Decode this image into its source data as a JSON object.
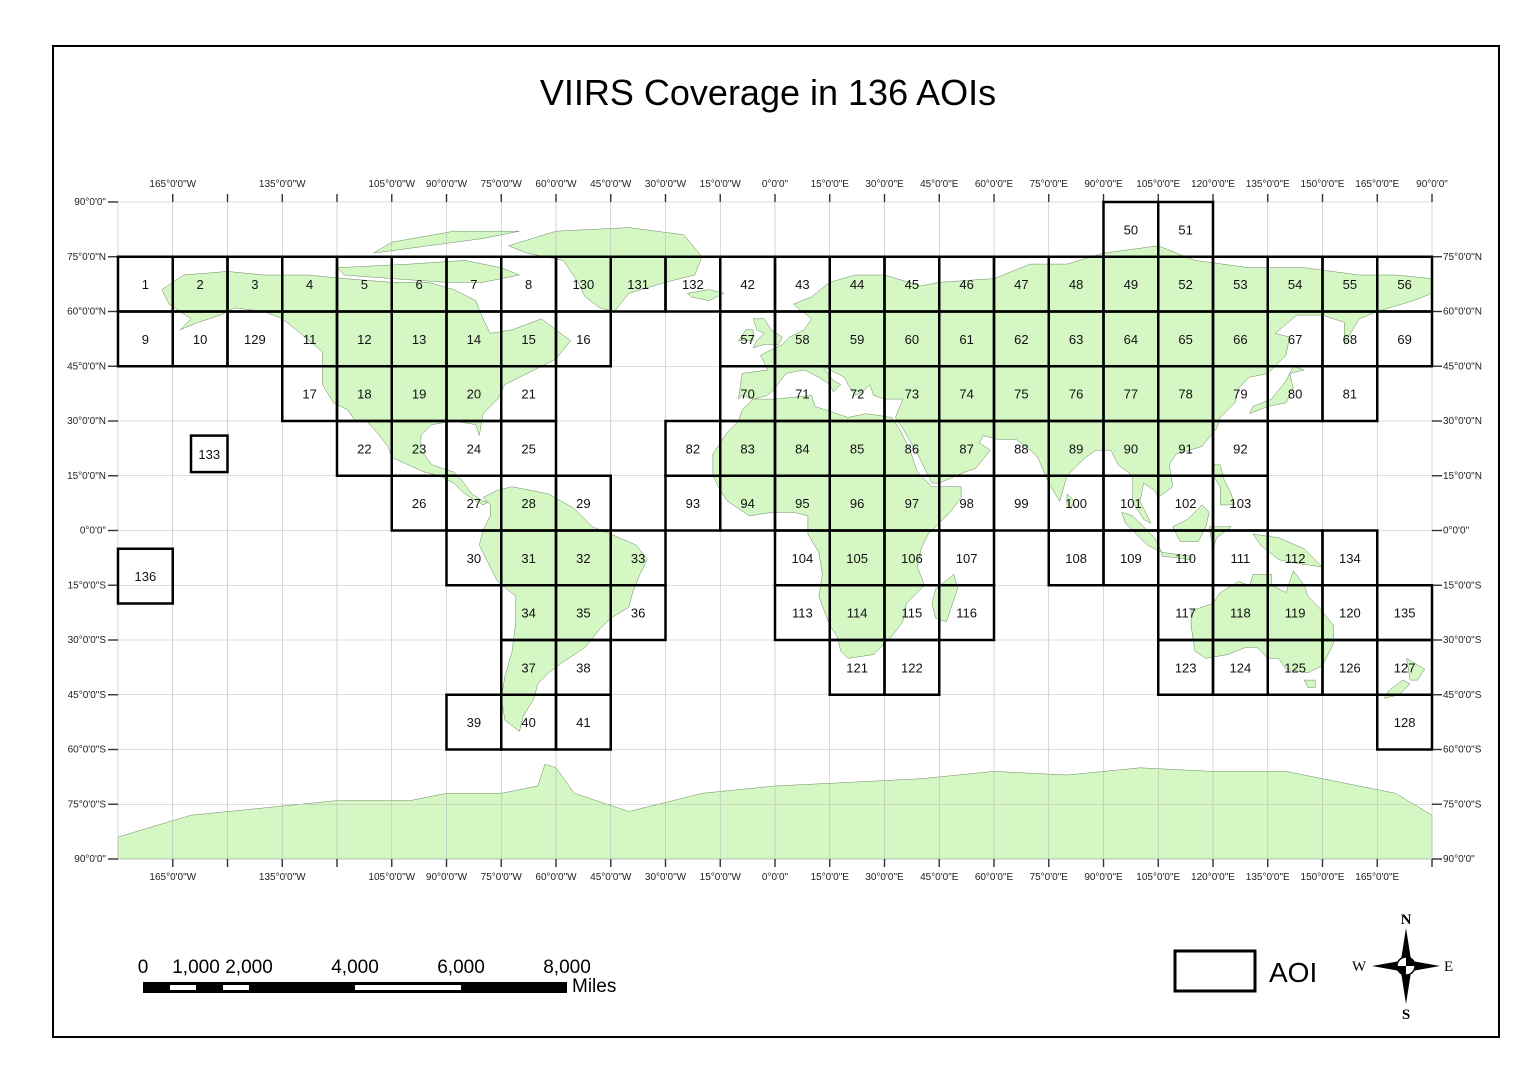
{
  "title": "VIIRS Coverage in 136 AOIs",
  "colors": {
    "land": "#d4f7c4",
    "grid": "#bbbbbb",
    "aoi_border": "#000000"
  },
  "map": {
    "lon_labels_top": [
      "165°0'0\"W",
      "135°0'0\"W",
      "105°0'0\"W",
      "90°0'0\"W",
      "75°0'0\"W",
      "60°0'0\"W",
      "45°0'0\"W",
      "30°0'0\"W",
      "15°0'0\"W",
      "0°0'0\"",
      "15°0'0\"E",
      "30°0'0\"E",
      "45°0'0\"E",
      "60°0'0\"E",
      "75°0'0\"E",
      "90°0'0\"E",
      "105°0'0\"E",
      "120°0'0\"E",
      "135°0'0\"E",
      "150°0'0\"E",
      "165°0'0\"E",
      "90°0'0\""
    ],
    "lon_labels_bottom": [
      "165°0'0\"W",
      "135°0'0\"W",
      "105°0'0\"W",
      "90°0'0\"W",
      "75°0'0\"W",
      "60°0'0\"W",
      "45°0'0\"W",
      "30°0'0\"W",
      "15°0'0\"W",
      "0°0'0\"",
      "15°0'0\"E",
      "30°0'0\"E",
      "45°0'0\"E",
      "60°0'0\"E",
      "75°0'0\"E",
      "90°0'0\"E",
      "105°0'0\"E",
      "120°0'0\"E",
      "135°0'0\"E",
      "150°0'0\"E",
      "165°0'0\"E"
    ],
    "lat_labels_left": [
      "90°0'0\"",
      "75°0'0\"N",
      "60°0'0\"N",
      "45°0'0\"N",
      "30°0'0\"N",
      "15°0'0\"N",
      "0°0'0\"",
      "15°0'0\"S",
      "30°0'0\"S",
      "45°0'0\"S",
      "60°0'0\"S",
      "75°0'0\"S",
      "90°0'0\""
    ],
    "lat_labels_right": [
      "75°0'0\"N",
      "60°0'0\"N",
      "45°0'0\"N",
      "30°0'0\"N",
      "15°0'0\"N",
      "0°0'0\"",
      "15°0'0\"S",
      "30°0'0\"S",
      "45°0'0\"S",
      "60°0'0\"S",
      "75°0'0\"S",
      "90°0'0\""
    ]
  },
  "aois": [
    {
      "id": "1",
      "lon": -180,
      "lat": 75
    },
    {
      "id": "2",
      "lon": -165,
      "lat": 75
    },
    {
      "id": "3",
      "lon": -150,
      "lat": 75
    },
    {
      "id": "4",
      "lon": -135,
      "lat": 75
    },
    {
      "id": "5",
      "lon": -120,
      "lat": 75
    },
    {
      "id": "6",
      "lon": -105,
      "lat": 75
    },
    {
      "id": "7",
      "lon": -90,
      "lat": 75
    },
    {
      "id": "8",
      "lon": -75,
      "lat": 75
    },
    {
      "id": "130",
      "lon": -60,
      "lat": 75
    },
    {
      "id": "131",
      "lon": -45,
      "lat": 75
    },
    {
      "id": "132",
      "lon": -30,
      "lat": 75
    },
    {
      "id": "42",
      "lon": -15,
      "lat": 75
    },
    {
      "id": "43",
      "lon": 0,
      "lat": 75
    },
    {
      "id": "44",
      "lon": 15,
      "lat": 75
    },
    {
      "id": "45",
      "lon": 30,
      "lat": 75
    },
    {
      "id": "46",
      "lon": 45,
      "lat": 75
    },
    {
      "id": "47",
      "lon": 60,
      "lat": 75
    },
    {
      "id": "48",
      "lon": 75,
      "lat": 75
    },
    {
      "id": "49",
      "lon": 90,
      "lat": 75
    },
    {
      "id": "52",
      "lon": 105,
      "lat": 75
    },
    {
      "id": "53",
      "lon": 120,
      "lat": 75
    },
    {
      "id": "54",
      "lon": 135,
      "lat": 75
    },
    {
      "id": "55",
      "lon": 150,
      "lat": 75
    },
    {
      "id": "56",
      "lon": 165,
      "lat": 75
    },
    {
      "id": "50",
      "lon": 90,
      "lat": 90
    },
    {
      "id": "51",
      "lon": 105,
      "lat": 90
    },
    {
      "id": "9",
      "lon": -180,
      "lat": 60
    },
    {
      "id": "10",
      "lon": -165,
      "lat": 60
    },
    {
      "id": "129",
      "lon": -150,
      "lat": 60
    },
    {
      "id": "11",
      "lon": -135,
      "lat": 60
    },
    {
      "id": "12",
      "lon": -120,
      "lat": 60
    },
    {
      "id": "13",
      "lon": -105,
      "lat": 60
    },
    {
      "id": "14",
      "lon": -90,
      "lat": 60
    },
    {
      "id": "15",
      "lon": -75,
      "lat": 60
    },
    {
      "id": "16",
      "lon": -60,
      "lat": 60
    },
    {
      "id": "57",
      "lon": -15,
      "lat": 60
    },
    {
      "id": "58",
      "lon": 0,
      "lat": 60
    },
    {
      "id": "59",
      "lon": 15,
      "lat": 60
    },
    {
      "id": "60",
      "lon": 30,
      "lat": 60
    },
    {
      "id": "61",
      "lon": 45,
      "lat": 60
    },
    {
      "id": "62",
      "lon": 60,
      "lat": 60
    },
    {
      "id": "63",
      "lon": 75,
      "lat": 60
    },
    {
      "id": "64",
      "lon": 90,
      "lat": 60
    },
    {
      "id": "65",
      "lon": 105,
      "lat": 60
    },
    {
      "id": "66",
      "lon": 120,
      "lat": 60
    },
    {
      "id": "67",
      "lon": 135,
      "lat": 60
    },
    {
      "id": "68",
      "lon": 150,
      "lat": 60
    },
    {
      "id": "69",
      "lon": 165,
      "lat": 60
    },
    {
      "id": "17",
      "lon": -135,
      "lat": 45
    },
    {
      "id": "18",
      "lon": -120,
      "lat": 45
    },
    {
      "id": "19",
      "lon": -105,
      "lat": 45
    },
    {
      "id": "20",
      "lon": -90,
      "lat": 45
    },
    {
      "id": "21",
      "lon": -75,
      "lat": 45
    },
    {
      "id": "70",
      "lon": -15,
      "lat": 45
    },
    {
      "id": "71",
      "lon": 0,
      "lat": 45
    },
    {
      "id": "72",
      "lon": 15,
      "lat": 45
    },
    {
      "id": "73",
      "lon": 30,
      "lat": 45
    },
    {
      "id": "74",
      "lon": 45,
      "lat": 45
    },
    {
      "id": "75",
      "lon": 60,
      "lat": 45
    },
    {
      "id": "76",
      "lon": 75,
      "lat": 45
    },
    {
      "id": "77",
      "lon": 90,
      "lat": 45
    },
    {
      "id": "78",
      "lon": 105,
      "lat": 45
    },
    {
      "id": "79",
      "lon": 120,
      "lat": 45
    },
    {
      "id": "80",
      "lon": 135,
      "lat": 45
    },
    {
      "id": "81",
      "lon": 150,
      "lat": 45
    },
    {
      "id": "22",
      "lon": -120,
      "lat": 30
    },
    {
      "id": "23",
      "lon": -105,
      "lat": 30
    },
    {
      "id": "24",
      "lon": -90,
      "lat": 30
    },
    {
      "id": "25",
      "lon": -75,
      "lat": 30
    },
    {
      "id": "82",
      "lon": -30,
      "lat": 30
    },
    {
      "id": "83",
      "lon": -15,
      "lat": 30
    },
    {
      "id": "84",
      "lon": 0,
      "lat": 30
    },
    {
      "id": "85",
      "lon": 15,
      "lat": 30
    },
    {
      "id": "86",
      "lon": 30,
      "lat": 30
    },
    {
      "id": "87",
      "lon": 45,
      "lat": 30
    },
    {
      "id": "88",
      "lon": 60,
      "lat": 30
    },
    {
      "id": "89",
      "lon": 75,
      "lat": 30
    },
    {
      "id": "90",
      "lon": 90,
      "lat": 30
    },
    {
      "id": "91",
      "lon": 105,
      "lat": 30
    },
    {
      "id": "92",
      "lon": 120,
      "lat": 30
    },
    {
      "id": "26",
      "lon": -105,
      "lat": 15
    },
    {
      "id": "27",
      "lon": -90,
      "lat": 15
    },
    {
      "id": "28",
      "lon": -75,
      "lat": 15
    },
    {
      "id": "29",
      "lon": -60,
      "lat": 15
    },
    {
      "id": "93",
      "lon": -30,
      "lat": 15
    },
    {
      "id": "94",
      "lon": -15,
      "lat": 15
    },
    {
      "id": "95",
      "lon": 0,
      "lat": 15
    },
    {
      "id": "96",
      "lon": 15,
      "lat": 15
    },
    {
      "id": "97",
      "lon": 30,
      "lat": 15
    },
    {
      "id": "98",
      "lon": 45,
      "lat": 15
    },
    {
      "id": "99",
      "lon": 60,
      "lat": 15
    },
    {
      "id": "100",
      "lon": 75,
      "lat": 15
    },
    {
      "id": "101",
      "lon": 90,
      "lat": 15
    },
    {
      "id": "102",
      "lon": 105,
      "lat": 15
    },
    {
      "id": "103",
      "lon": 120,
      "lat": 15
    },
    {
      "id": "30",
      "lon": -90,
      "lat": 0
    },
    {
      "id": "31",
      "lon": -75,
      "lat": 0
    },
    {
      "id": "32",
      "lon": -60,
      "lat": 0
    },
    {
      "id": "33",
      "lon": -45,
      "lat": 0
    },
    {
      "id": "104",
      "lon": 0,
      "lat": 0
    },
    {
      "id": "105",
      "lon": 15,
      "lat": 0
    },
    {
      "id": "106",
      "lon": 30,
      "lat": 0
    },
    {
      "id": "107",
      "lon": 45,
      "lat": 0
    },
    {
      "id": "108",
      "lon": 75,
      "lat": 0
    },
    {
      "id": "109",
      "lon": 90,
      "lat": 0
    },
    {
      "id": "110",
      "lon": 105,
      "lat": 0
    },
    {
      "id": "111",
      "lon": 120,
      "lat": 0
    },
    {
      "id": "112",
      "lon": 135,
      "lat": 0
    },
    {
      "id": "134",
      "lon": 150,
      "lat": 0
    },
    {
      "id": "34",
      "lon": -75,
      "lat": -15
    },
    {
      "id": "35",
      "lon": -60,
      "lat": -15
    },
    {
      "id": "36",
      "lon": -45,
      "lat": -15
    },
    {
      "id": "113",
      "lon": 0,
      "lat": -15
    },
    {
      "id": "114",
      "lon": 15,
      "lat": -15
    },
    {
      "id": "115",
      "lon": 30,
      "lat": -15
    },
    {
      "id": "116",
      "lon": 45,
      "lat": -15
    },
    {
      "id": "117",
      "lon": 105,
      "lat": -15
    },
    {
      "id": "118",
      "lon": 120,
      "lat": -15
    },
    {
      "id": "119",
      "lon": 135,
      "lat": -15
    },
    {
      "id": "120",
      "lon": 150,
      "lat": -15
    },
    {
      "id": "135",
      "lon": 165,
      "lat": -15
    },
    {
      "id": "37",
      "lon": -75,
      "lat": -30
    },
    {
      "id": "38",
      "lon": -60,
      "lat": -30
    },
    {
      "id": "121",
      "lon": 15,
      "lat": -30
    },
    {
      "id": "122",
      "lon": 30,
      "lat": -30
    },
    {
      "id": "123",
      "lon": 105,
      "lat": -30
    },
    {
      "id": "124",
      "lon": 120,
      "lat": -30
    },
    {
      "id": "125",
      "lon": 135,
      "lat": -30
    },
    {
      "id": "126",
      "lon": 150,
      "lat": -30
    },
    {
      "id": "127",
      "lon": 165,
      "lat": -30
    },
    {
      "id": "39",
      "lon": -90,
      "lat": -45
    },
    {
      "id": "40",
      "lon": -75,
      "lat": -45
    },
    {
      "id": "41",
      "lon": -60,
      "lat": -45
    },
    {
      "id": "128",
      "lon": 165,
      "lat": -45
    }
  ],
  "small_aois": [
    {
      "id": "133",
      "lon_w": -160,
      "lon_e": -150,
      "lat_n": 26,
      "lat_s": 16
    },
    {
      "id": "136",
      "lon_w": -180,
      "lon_e": -165,
      "lat_n": -5,
      "lat_s": -20
    }
  ],
  "scale_bar": {
    "labels": [
      "0",
      "1,000",
      "2,000",
      "4,000",
      "6,000",
      "8,000"
    ],
    "unit": "Miles"
  },
  "legend": {
    "label": "AOI"
  },
  "compass": {
    "n": "N",
    "s": "S",
    "e": "E",
    "w": "W"
  }
}
